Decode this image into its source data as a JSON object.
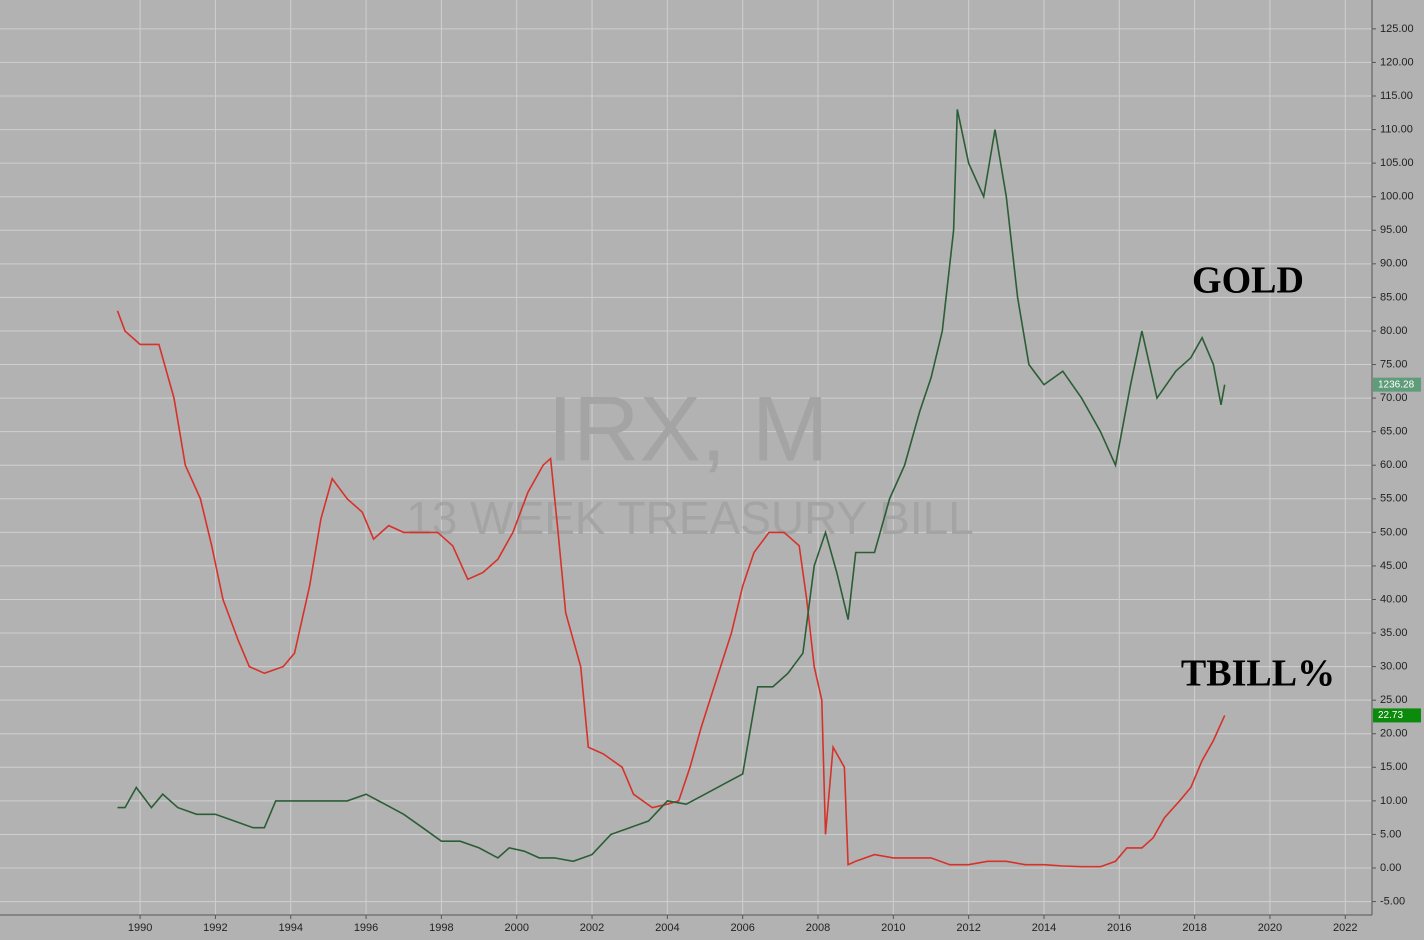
{
  "chart_data": {
    "type": "line",
    "title": "IRX, M",
    "subtitle": "13 WEEK TREASURY BILL",
    "annotations": [
      "GOLD",
      "TBILL%"
    ],
    "xlim": [
      1986.28,
      2022.71
    ],
    "ylim": [
      -7,
      129.3
    ],
    "xticks": [
      1990,
      1992,
      1994,
      1996,
      1998,
      2000,
      2002,
      2004,
      2006,
      2008,
      2010,
      2012,
      2014,
      2016,
      2018,
      2020,
      2022
    ],
    "yticks": [
      {
        "value": -5,
        "label": "-5.00"
      },
      {
        "value": 0,
        "label": "0.00"
      },
      {
        "value": 5,
        "label": "5.00"
      },
      {
        "value": 10,
        "label": "10.00"
      },
      {
        "value": 15,
        "label": "15.00"
      },
      {
        "value": 20,
        "label": "20.00"
      },
      {
        "value": 25,
        "label": "25.00"
      },
      {
        "value": 30,
        "label": "30.00"
      },
      {
        "value": 35,
        "label": "35.00"
      },
      {
        "value": 40,
        "label": "40.00"
      },
      {
        "value": 45,
        "label": "45.00"
      },
      {
        "value": 50,
        "label": "50.00"
      },
      {
        "value": 55,
        "label": "55.00"
      },
      {
        "value": 60,
        "label": "60.00"
      },
      {
        "value": 65,
        "label": "65.00"
      },
      {
        "value": 70,
        "label": "70.00"
      },
      {
        "value": 75,
        "label": "75.00"
      },
      {
        "value": 80,
        "label": "80.00"
      },
      {
        "value": 85,
        "label": "85.00"
      },
      {
        "value": 90,
        "label": "90.00"
      },
      {
        "value": 95,
        "label": "95.00"
      },
      {
        "value": 100,
        "label": "100.00"
      },
      {
        "value": 105,
        "label": "105.00"
      },
      {
        "value": 110,
        "label": "110.00"
      },
      {
        "value": 115,
        "label": "115.00"
      },
      {
        "value": 120,
        "label": "120.00"
      },
      {
        "value": 125,
        "label": "125.00"
      }
    ],
    "grid": true,
    "series": [
      {
        "name": "TBILL%",
        "color": "#d6322a",
        "label_color": "#0b8a0b",
        "price_label": "22.73",
        "x": [
          1989.4,
          1989.6,
          1990.0,
          1990.5,
          1990.9,
          1991.2,
          1991.6,
          1991.9,
          1992.2,
          1992.6,
          1992.9,
          1993.3,
          1993.8,
          1994.1,
          1994.5,
          1994.8,
          1995.1,
          1995.5,
          1995.9,
          1996.2,
          1996.6,
          1997.0,
          1997.5,
          1997.9,
          1998.3,
          1998.7,
          1999.1,
          1999.5,
          1999.9,
          2000.3,
          2000.7,
          2000.9,
          2001.1,
          2001.3,
          2001.7,
          2001.9,
          2002.3,
          2002.8,
          2003.1,
          2003.6,
          2004.0,
          2004.3,
          2004.6,
          2004.9,
          2005.3,
          2005.7,
          2006.0,
          2006.3,
          2006.7,
          2007.1,
          2007.5,
          2007.7,
          2007.9,
          2008.1,
          2008.2,
          2008.4,
          2008.7,
          2008.8,
          2009.0,
          2009.5,
          2010.0,
          2010.5,
          2011.0,
          2011.5,
          2012.0,
          2012.5,
          2013.0,
          2013.5,
          2014.0,
          2014.5,
          2015.0,
          2015.5,
          2015.9,
          2016.2,
          2016.6,
          2016.9,
          2017.2,
          2017.6,
          2017.9,
          2018.2,
          2018.5,
          2018.8
        ],
        "values": [
          83,
          80,
          78,
          78,
          70,
          60,
          55,
          48,
          40,
          34,
          30,
          29,
          30,
          32,
          42,
          52,
          58,
          55,
          53,
          49,
          51,
          50,
          50,
          50,
          48,
          43,
          44,
          46,
          50,
          56,
          60,
          61,
          50,
          38,
          30,
          18,
          17,
          15,
          11,
          9,
          9.5,
          10,
          15,
          21,
          28,
          35,
          42,
          47,
          50,
          50,
          48,
          40,
          30,
          25,
          5,
          18,
          15,
          0.5,
          1,
          2,
          1.5,
          1.5,
          1.5,
          0.5,
          0.5,
          1,
          1,
          0.5,
          0.5,
          0.3,
          0.2,
          0.2,
          1,
          3,
          3,
          4.5,
          7.5,
          10,
          12,
          16,
          19,
          22.73
        ]
      },
      {
        "name": "GOLD",
        "color": "#2b5e36",
        "label_color": "#5f9c7a",
        "price_label": "1236.28",
        "x": [
          1989.4,
          1989.6,
          1989.9,
          1990.3,
          1990.6,
          1991.0,
          1991.5,
          1992.0,
          1992.5,
          1993.0,
          1993.3,
          1993.6,
          1994.0,
          1994.5,
          1995.0,
          1995.5,
          1996.0,
          1996.5,
          1997.0,
          1997.5,
          1998.0,
          1998.5,
          1999.0,
          1999.5,
          1999.8,
          2000.2,
          2000.6,
          2001.0,
          2001.5,
          2002.0,
          2002.5,
          2003.0,
          2003.5,
          2004.0,
          2004.5,
          2005.0,
          2005.5,
          2006.0,
          2006.4,
          2006.8,
          2007.2,
          2007.6,
          2007.9,
          2008.2,
          2008.5,
          2008.8,
          2009.0,
          2009.5,
          2009.9,
          2010.3,
          2010.7,
          2011.0,
          2011.3,
          2011.6,
          2011.7,
          2012.0,
          2012.4,
          2012.7,
          2013.0,
          2013.3,
          2013.6,
          2014.0,
          2014.5,
          2015.0,
          2015.5,
          2015.9,
          2016.3,
          2016.6,
          2017.0,
          2017.5,
          2017.9,
          2018.2,
          2018.5,
          2018.7,
          2018.8
        ],
        "values": [
          9,
          9,
          12,
          9,
          11,
          9,
          8,
          8,
          7,
          6,
          6,
          10,
          10,
          10,
          10,
          10,
          11,
          9.5,
          8,
          6,
          4,
          4,
          3,
          1.5,
          3,
          2.5,
          1.5,
          1.5,
          1,
          2,
          5,
          6,
          7,
          10,
          9.5,
          11,
          12.5,
          14,
          27,
          27,
          29,
          32,
          45,
          50,
          44,
          37,
          47,
          47,
          55,
          60,
          68,
          73,
          80,
          95,
          113,
          105,
          100,
          110,
          100,
          85,
          75,
          72,
          74,
          70,
          65,
          60,
          72,
          80,
          70,
          74,
          76,
          79,
          75,
          69,
          72
        ]
      }
    ]
  }
}
